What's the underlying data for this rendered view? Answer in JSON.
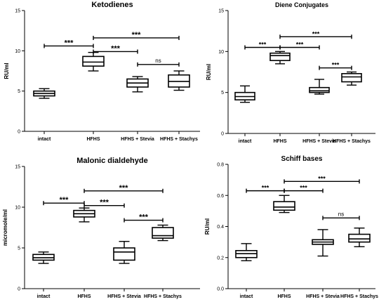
{
  "chart_data": [
    {
      "type": "box",
      "title": "Ketodienes",
      "xlabel": "",
      "ylabel": "RU/ml",
      "ylim": [
        0,
        15
      ],
      "yticks": [
        0,
        5,
        10,
        15
      ],
      "categories": [
        "intact",
        "HFHS",
        "HFHS + Stevia",
        "HFHS + Stachys"
      ],
      "boxes": [
        {
          "min": 4.1,
          "q1": 4.4,
          "median": 4.7,
          "q3": 5.0,
          "max": 5.3
        },
        {
          "min": 7.5,
          "q1": 8.1,
          "median": 8.6,
          "q3": 9.3,
          "max": 9.8
        },
        {
          "min": 4.9,
          "q1": 5.5,
          "median": 6.0,
          "q3": 6.5,
          "max": 6.8
        },
        {
          "min": 5.1,
          "q1": 5.5,
          "median": 6.2,
          "q3": 7.0,
          "max": 7.5
        }
      ],
      "annotations": [
        {
          "from": 0,
          "to": 1,
          "y": 10.6,
          "label": "***"
        },
        {
          "from": 1,
          "to": 3,
          "y": 11.6,
          "label": "***"
        },
        {
          "from": 1,
          "to": 2,
          "y": 9.9,
          "label": "***"
        },
        {
          "from": 2,
          "to": 3,
          "y": 8.3,
          "label": "ns"
        }
      ]
    },
    {
      "type": "box",
      "title": "Diene Conjugates",
      "xlabel": "",
      "ylabel": "RU/ml",
      "ylim": [
        0,
        15
      ],
      "yticks": [
        0,
        5,
        10,
        15
      ],
      "categories": [
        "intact",
        "HFHS",
        "HFHS + Stevia",
        "HFHS + Stachys"
      ],
      "boxes": [
        {
          "min": 3.8,
          "q1": 4.1,
          "median": 4.5,
          "q3": 5.0,
          "max": 5.8
        },
        {
          "min": 8.5,
          "q1": 8.9,
          "median": 9.5,
          "q3": 9.8,
          "max": 10.0
        },
        {
          "min": 4.8,
          "q1": 5.0,
          "median": 5.2,
          "q3": 5.6,
          "max": 6.6
        },
        {
          "min": 5.9,
          "q1": 6.3,
          "median": 6.9,
          "q3": 7.3,
          "max": 7.5
        }
      ],
      "annotations": [
        {
          "from": 0,
          "to": 1,
          "y": 10.5,
          "label": "***"
        },
        {
          "from": 1,
          "to": 3,
          "y": 11.8,
          "label": "***"
        },
        {
          "from": 1,
          "to": 2,
          "y": 10.5,
          "label": "***"
        },
        {
          "from": 2,
          "to": 3,
          "y": 8.0,
          "label": "***"
        }
      ]
    },
    {
      "type": "box",
      "title": "Malonic dialdehyde",
      "xlabel": "",
      "ylabel": "micromole/ml",
      "ylim": [
        0,
        15
      ],
      "yticks": [
        0,
        5,
        10,
        15
      ],
      "categories": [
        "intact",
        "HFHS",
        "HFHS + Stevia",
        "HFHS + Stachys"
      ],
      "boxes": [
        {
          "min": 3.1,
          "q1": 3.5,
          "median": 3.8,
          "q3": 4.2,
          "max": 4.5
        },
        {
          "min": 8.2,
          "q1": 8.8,
          "median": 9.2,
          "q3": 9.6,
          "max": 9.9
        },
        {
          "min": 3.1,
          "q1": 3.5,
          "median": 4.5,
          "q3": 5.0,
          "max": 5.8
        },
        {
          "min": 5.9,
          "q1": 6.2,
          "median": 6.5,
          "q3": 7.5,
          "max": 7.8
        }
      ],
      "annotations": [
        {
          "from": 0,
          "to": 1,
          "y": 10.5,
          "label": "***"
        },
        {
          "from": 1,
          "to": 3,
          "y": 12.0,
          "label": "***"
        },
        {
          "from": 1,
          "to": 2,
          "y": 10.2,
          "label": "***"
        },
        {
          "from": 2,
          "to": 3,
          "y": 8.4,
          "label": "***"
        }
      ]
    },
    {
      "type": "box",
      "title": "Schiff bases",
      "xlabel": "",
      "ylabel": "RU/ml",
      "ylim": [
        0,
        0.8
      ],
      "yticks": [
        0.0,
        0.2,
        0.4,
        0.6,
        0.8
      ],
      "categories": [
        "intact",
        "HFHS",
        "HFHS + Stevia",
        "HFHS + Stachys"
      ],
      "boxes": [
        {
          "min": 0.18,
          "q1": 0.2,
          "median": 0.225,
          "q3": 0.245,
          "max": 0.29
        },
        {
          "min": 0.49,
          "q1": 0.505,
          "median": 0.525,
          "q3": 0.56,
          "max": 0.6
        },
        {
          "min": 0.21,
          "q1": 0.285,
          "median": 0.3,
          "q3": 0.315,
          "max": 0.38
        },
        {
          "min": 0.27,
          "q1": 0.3,
          "median": 0.32,
          "q3": 0.35,
          "max": 0.39
        }
      ],
      "annotations": [
        {
          "from": 0,
          "to": 1,
          "y": 0.63,
          "label": "***"
        },
        {
          "from": 1,
          "to": 3,
          "y": 0.69,
          "label": "***"
        },
        {
          "from": 1,
          "to": 2,
          "y": 0.63,
          "label": "***"
        },
        {
          "from": 2,
          "to": 3,
          "y": 0.455,
          "label": "ns"
        }
      ]
    }
  ]
}
